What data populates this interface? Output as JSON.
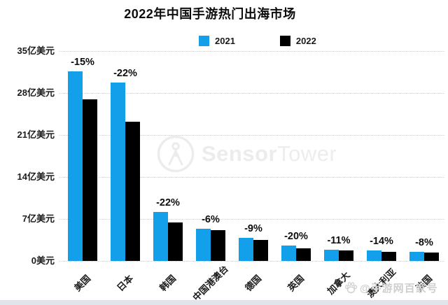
{
  "title": "2022年中国手游热门出海市场",
  "legend": {
    "items": [
      {
        "label": "2021",
        "color": "#149FEA"
      },
      {
        "label": "2022",
        "color": "#000000"
      }
    ]
  },
  "center_watermark": {
    "icon": "sensortower-logo-icon",
    "brand_bold": "Sensor",
    "brand_light": "Tower"
  },
  "footer_watermark": {
    "icon": "baidu-paw-icon",
    "text": "@手游网百家号"
  },
  "chart_data": {
    "type": "bar",
    "title": "2022年中国手游热门出海市场",
    "unit": "亿美元",
    "categories": [
      "美国",
      "日本",
      "韩国",
      "中国港澳台",
      "德国",
      "英国",
      "加拿大",
      "澳大利亚",
      "法国"
    ],
    "series": [
      {
        "name": "2021",
        "color": "#149FEA",
        "values": [
          31.6,
          29.8,
          8.2,
          5.4,
          3.9,
          2.6,
          1.9,
          1.8,
          1.5
        ]
      },
      {
        "name": "2022",
        "color": "#000000",
        "values": [
          26.9,
          23.2,
          6.4,
          5.1,
          3.5,
          2.1,
          1.7,
          1.5,
          1.4
        ]
      }
    ],
    "bar_labels": [
      "-15%",
      "-22%",
      "-22%",
      "-6%",
      "-9%",
      "-20%",
      "-11%",
      "-14%",
      "-8%"
    ],
    "y_ticks": [
      "35亿美元",
      "28亿美元",
      "21亿美元",
      "14亿美元",
      "7亿美元",
      "0美元"
    ],
    "ylim": [
      0,
      35
    ],
    "grid": "dotted-horizontal",
    "legend_position": "top-center",
    "xlabel": "",
    "ylabel": "亿美元"
  }
}
